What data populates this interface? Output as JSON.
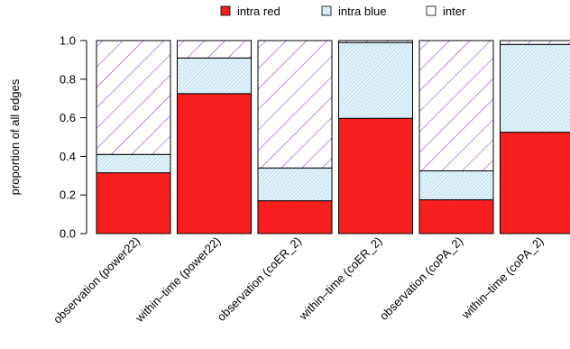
{
  "chart_data": {
    "type": "bar",
    "stacked": true,
    "title": "",
    "xlabel": "",
    "ylabel": "proportion of all edges",
    "ylim": [
      0,
      1
    ],
    "yticks": [
      "0.0",
      "0.2",
      "0.4",
      "0.6",
      "0.8",
      "1.0"
    ],
    "grid": false,
    "legend_position": "top",
    "categories": [
      "observation (power22)",
      "within–time (power22)",
      "observation (coER_2)",
      "within–time (coER_2)",
      "observation (coPA_2)",
      "within–time (coPA_2)"
    ],
    "series": [
      {
        "name": "intra red",
        "color": "#ff2a2a",
        "pattern": "dense red hatching",
        "values": [
          0.315,
          0.725,
          0.17,
          0.597,
          0.175,
          0.525
        ]
      },
      {
        "name": "intra blue",
        "color": "#a9d6e6",
        "pattern": "light blue hatching",
        "values": [
          0.095,
          0.185,
          0.17,
          0.393,
          0.15,
          0.455
        ]
      },
      {
        "name": "inter",
        "color": "#9b30d8",
        "pattern": "purple diagonal lines",
        "values": [
          0.59,
          0.09,
          0.66,
          0.01,
          0.675,
          0.02
        ]
      }
    ]
  }
}
